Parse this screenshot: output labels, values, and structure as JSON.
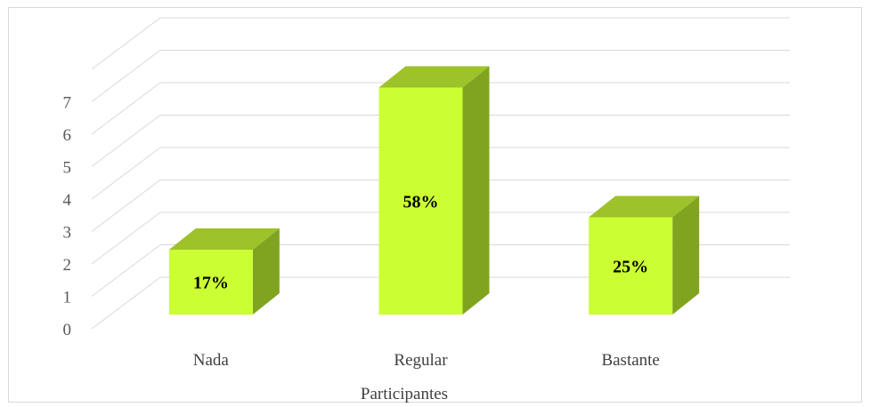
{
  "chart_data": {
    "type": "bar",
    "style": "3d-column",
    "categories": [
      "Nada",
      "Regular",
      "Bastante"
    ],
    "values": [
      2,
      7,
      3
    ],
    "data_labels": [
      "17%",
      "58%",
      "25%"
    ],
    "title": "",
    "xlabel": "Participantes",
    "ylabel": "",
    "ylim": [
      0,
      8
    ],
    "yticks": [
      "0",
      "1",
      "2",
      "3",
      "4",
      "5",
      "6",
      "7"
    ],
    "grid": true,
    "legend": "none",
    "colors": {
      "front": "#ccff33",
      "top": "#9dc22a",
      "side": "#80a420",
      "grid": "#d9d9d9",
      "frame": "#d9d9d9"
    }
  }
}
